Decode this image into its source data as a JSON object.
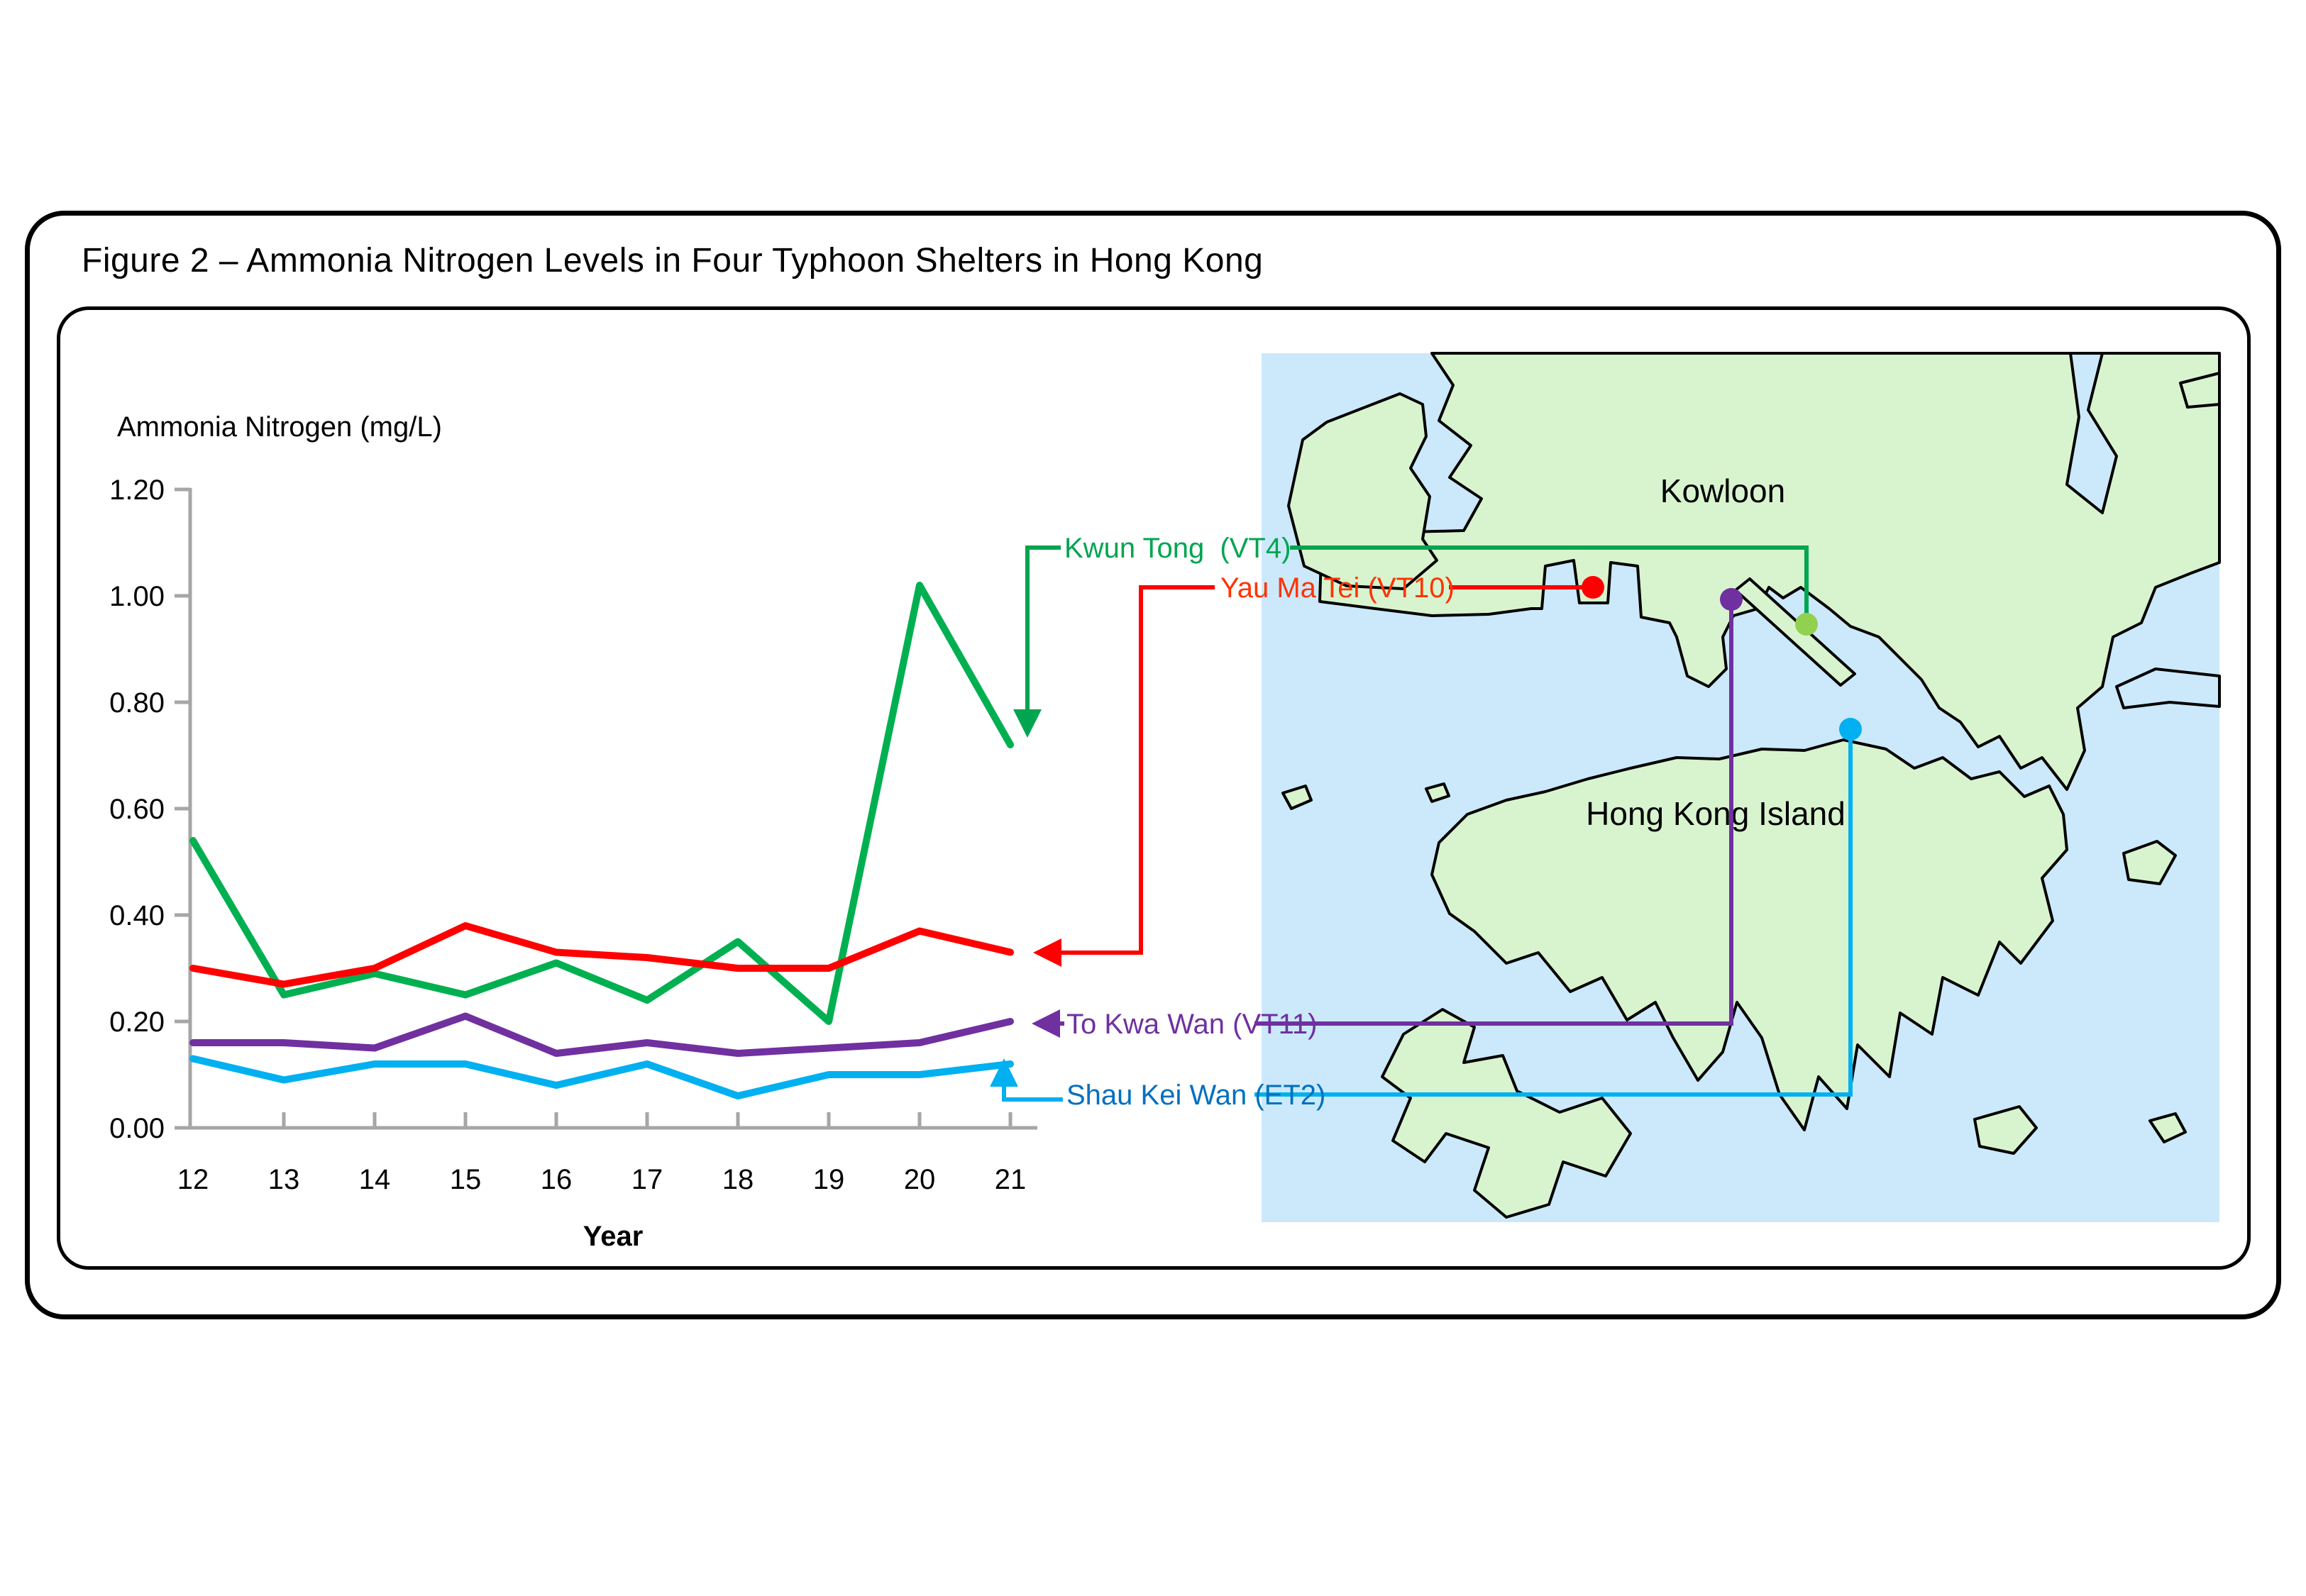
{
  "figure": {
    "title": "Figure 2 – Ammonia Nitrogen Levels in Four Typhoon Shelters in Hong Kong"
  },
  "chart_data": {
    "type": "line",
    "title": "",
    "ylabel": "Ammonia Nitrogen (mg/L)",
    "xlabel": "Year",
    "x": [
      12,
      13,
      14,
      15,
      16,
      17,
      18,
      19,
      20,
      21
    ],
    "ylim": [
      0.0,
      1.2
    ],
    "ytick_step": 0.2,
    "ytick_decimals": 2,
    "grid": "off",
    "legend_position": "annotated-arrows",
    "axis_color": "#A6A6A6",
    "series": [
      {
        "name": "Kwun Tong  (VT4)",
        "shelter": "Kwun Tong",
        "station": "VT4",
        "color": "#00B050",
        "label_color": "#00A550",
        "values": [
          0.54,
          0.25,
          0.29,
          0.25,
          0.31,
          0.24,
          0.35,
          0.2,
          1.02,
          0.72
        ]
      },
      {
        "name": "Yau Ma Tei (VT10)",
        "shelter": "Yau Ma Tei",
        "station": "VT10",
        "color": "#FF0000",
        "label_color": "#FF3300",
        "values": [
          0.3,
          0.27,
          0.3,
          0.38,
          0.33,
          0.32,
          0.3,
          0.3,
          0.37,
          0.33
        ]
      },
      {
        "name": "To Kwa Wan (VT11)",
        "shelter": "To Kwa Wan",
        "station": "VT11",
        "color": "#7030A0",
        "label_color": "#7030A0",
        "values": [
          0.16,
          0.16,
          0.15,
          0.21,
          0.14,
          0.16,
          0.14,
          0.15,
          0.16,
          0.2
        ]
      },
      {
        "name": "Shau Kei Wan (ET2)",
        "shelter": "Shau Kei Wan",
        "station": "ET2",
        "color": "#00B0F0",
        "label_color": "#0070C0",
        "values": [
          0.13,
          0.09,
          0.12,
          0.12,
          0.08,
          0.12,
          0.06,
          0.1,
          0.1,
          0.12
        ]
      }
    ]
  },
  "map": {
    "water_color": "#CBE9FB",
    "land_color": "#D8F4CF",
    "coast_color": "#000000",
    "region_labels": {
      "kowloon": "Kowloon",
      "hk_island": "Hong Kong Island"
    },
    "markers": [
      {
        "label": "Yau Ma Tei (VT10)",
        "station": "VT10",
        "color": "#FF0000"
      },
      {
        "label": "To Kwa Wan (VT11)",
        "station": "VT11",
        "color": "#7030A0"
      },
      {
        "label": "Kwun Tong (VT4)",
        "station": "VT4",
        "color": "#92D050"
      },
      {
        "label": "Shau Kei Wan (ET2)",
        "station": "ET2",
        "color": "#00B0F0"
      }
    ]
  }
}
